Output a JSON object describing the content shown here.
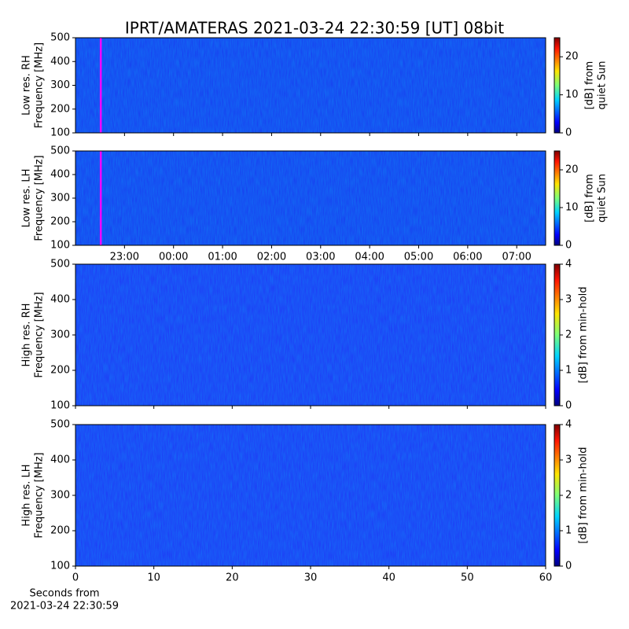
{
  "chart_data": [
    {
      "type": "heatmap",
      "title": "IPRT/AMATERAS 2021-03-24 22:30:59 [UT]   08bit",
      "ylabel": [
        "Low res. RH",
        "Frequency [MHz]"
      ],
      "ylim": [
        100,
        500
      ],
      "yticks": [
        100,
        200,
        300,
        400,
        500
      ],
      "clim": [
        0,
        25
      ],
      "cticks": [
        0,
        10,
        20
      ],
      "clabel": [
        "[dB] from",
        "quiet Sun"
      ],
      "vline": {
        "x": 22.516,
        "color": "#ff00ff"
      }
    },
    {
      "type": "heatmap",
      "ylabel": [
        "Low res. LH",
        "Frequency [MHz]"
      ],
      "ylim": [
        100,
        500
      ],
      "yticks": [
        100,
        200,
        300,
        400,
        500
      ],
      "clim": [
        0,
        25
      ],
      "cticks": [
        0,
        10,
        20
      ],
      "clabel": [
        "[dB] from",
        "quiet Sun"
      ],
      "vline": {
        "x": 22.516,
        "color": "#ff00ff"
      },
      "xlim": [
        22.0,
        31.59
      ],
      "xticks": [
        {
          "value": 23,
          "label": "23:00"
        },
        {
          "value": 24,
          "label": "00:00"
        },
        {
          "value": 25,
          "label": "01:00"
        },
        {
          "value": 26,
          "label": "02:00"
        },
        {
          "value": 27,
          "label": "03:00"
        },
        {
          "value": 28,
          "label": "04:00"
        },
        {
          "value": 29,
          "label": "05:00"
        },
        {
          "value": 30,
          "label": "06:00"
        },
        {
          "value": 31,
          "label": "07:00"
        }
      ]
    },
    {
      "type": "heatmap",
      "ylabel": [
        "High res. RH",
        "Frequency [MHz]"
      ],
      "ylim": [
        100,
        500
      ],
      "yticks": [
        100,
        200,
        300,
        400,
        500
      ],
      "clim": [
        0,
        4
      ],
      "cticks": [
        0,
        1,
        2,
        3,
        4
      ],
      "clabel": [
        "[dB] from min-hold"
      ]
    },
    {
      "type": "heatmap",
      "ylabel": [
        "High res. LH",
        "Frequency [MHz]"
      ],
      "ylim": [
        100,
        500
      ],
      "yticks": [
        100,
        200,
        300,
        400,
        500
      ],
      "clim": [
        0,
        4
      ],
      "cticks": [
        0,
        1,
        2,
        3,
        4
      ],
      "clabel": [
        "[dB] from min-hold"
      ],
      "xlim": [
        0,
        60
      ],
      "xticks": [
        0,
        10,
        20,
        30,
        40,
        50,
        60
      ],
      "xlabel": [
        "Seconds from",
        "2021-03-24 22:30:59"
      ]
    }
  ]
}
